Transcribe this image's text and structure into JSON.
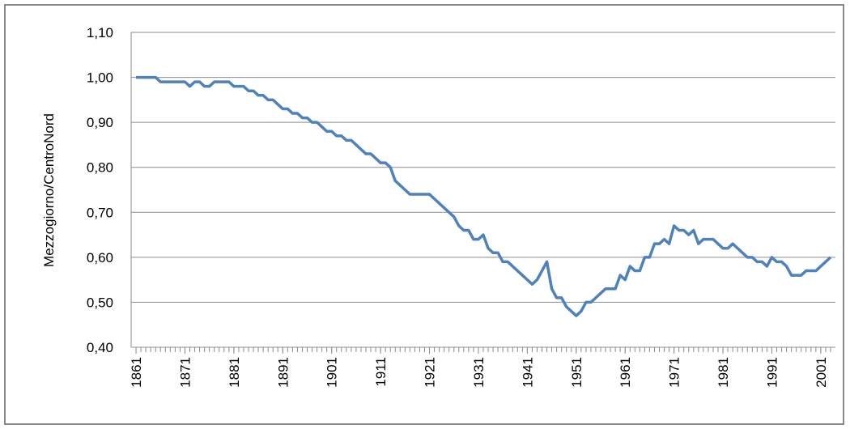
{
  "chart_data": {
    "type": "line",
    "y_label": "Mezzogiorno/CentroNord",
    "x": [
      1861,
      1862,
      1863,
      1864,
      1865,
      1866,
      1867,
      1868,
      1869,
      1870,
      1871,
      1872,
      1873,
      1874,
      1875,
      1876,
      1877,
      1878,
      1879,
      1880,
      1881,
      1882,
      1883,
      1884,
      1885,
      1886,
      1887,
      1888,
      1889,
      1890,
      1891,
      1892,
      1893,
      1894,
      1895,
      1896,
      1897,
      1898,
      1899,
      1900,
      1901,
      1902,
      1903,
      1904,
      1905,
      1906,
      1907,
      1908,
      1909,
      1910,
      1911,
      1912,
      1913,
      1914,
      1915,
      1916,
      1917,
      1918,
      1919,
      1920,
      1921,
      1922,
      1923,
      1924,
      1925,
      1926,
      1927,
      1928,
      1929,
      1930,
      1931,
      1932,
      1933,
      1934,
      1935,
      1936,
      1937,
      1938,
      1939,
      1940,
      1941,
      1942,
      1943,
      1944,
      1945,
      1946,
      1947,
      1948,
      1949,
      1950,
      1951,
      1952,
      1953,
      1954,
      1955,
      1956,
      1957,
      1958,
      1959,
      1960,
      1961,
      1962,
      1963,
      1964,
      1965,
      1966,
      1967,
      1968,
      1969,
      1970,
      1971,
      1972,
      1973,
      1974,
      1975,
      1976,
      1977,
      1978,
      1979,
      1980,
      1981,
      1982,
      1983,
      1984,
      1985,
      1986,
      1987,
      1988,
      1989,
      1990,
      1991,
      1992,
      1993,
      1994,
      1995,
      1996,
      1997,
      1998,
      1999,
      2000,
      2001,
      2002,
      2003
    ],
    "series": [
      {
        "name": "Mezzogiorno/CentroNord",
        "color": "#4f81bd",
        "values": [
          1.0,
          1.0,
          1.0,
          1.0,
          1.0,
          0.99,
          0.99,
          0.99,
          0.99,
          0.99,
          0.99,
          0.98,
          0.99,
          0.99,
          0.98,
          0.98,
          0.99,
          0.99,
          0.99,
          0.99,
          0.98,
          0.98,
          0.98,
          0.97,
          0.97,
          0.96,
          0.96,
          0.95,
          0.95,
          0.94,
          0.93,
          0.93,
          0.92,
          0.92,
          0.91,
          0.91,
          0.9,
          0.9,
          0.89,
          0.88,
          0.88,
          0.87,
          0.87,
          0.86,
          0.86,
          0.85,
          0.84,
          0.83,
          0.83,
          0.82,
          0.81,
          0.81,
          0.8,
          0.77,
          0.76,
          0.75,
          0.74,
          0.74,
          0.74,
          0.74,
          0.74,
          0.73,
          0.72,
          0.71,
          0.7,
          0.69,
          0.67,
          0.66,
          0.66,
          0.64,
          0.64,
          0.65,
          0.62,
          0.61,
          0.61,
          0.59,
          0.59,
          0.58,
          0.57,
          0.56,
          0.55,
          0.54,
          0.55,
          0.57,
          0.59,
          0.53,
          0.51,
          0.51,
          0.49,
          0.48,
          0.47,
          0.48,
          0.5,
          0.5,
          0.51,
          0.52,
          0.53,
          0.53,
          0.53,
          0.56,
          0.55,
          0.58,
          0.57,
          0.57,
          0.6,
          0.6,
          0.63,
          0.63,
          0.64,
          0.63,
          0.67,
          0.66,
          0.66,
          0.65,
          0.66,
          0.63,
          0.64,
          0.64,
          0.64,
          0.63,
          0.62,
          0.62,
          0.63,
          0.62,
          0.61,
          0.6,
          0.6,
          0.59,
          0.59,
          0.58,
          0.6,
          0.59,
          0.59,
          0.58,
          0.56,
          0.56,
          0.56,
          0.57,
          0.57,
          0.57,
          0.58,
          0.59,
          0.6
        ]
      }
    ],
    "xlim": [
      1860,
      2004
    ],
    "xticks": [
      1861,
      1871,
      1881,
      1891,
      1901,
      1911,
      1921,
      1931,
      1941,
      1951,
      1961,
      1971,
      1981,
      1991,
      2001
    ],
    "ylim": [
      0.4,
      1.1
    ],
    "yticks": [
      {
        "value": 0.4,
        "label": "0,40"
      },
      {
        "value": 0.5,
        "label": "0,50"
      },
      {
        "value": 0.6,
        "label": "0,60"
      },
      {
        "value": 0.7,
        "label": "0,70"
      },
      {
        "value": 0.8,
        "label": "0,80"
      },
      {
        "value": 0.9,
        "label": "0,90"
      },
      {
        "value": 1.0,
        "label": "1,00"
      },
      {
        "value": 1.1,
        "label": "1,10"
      }
    ],
    "grid": true
  }
}
